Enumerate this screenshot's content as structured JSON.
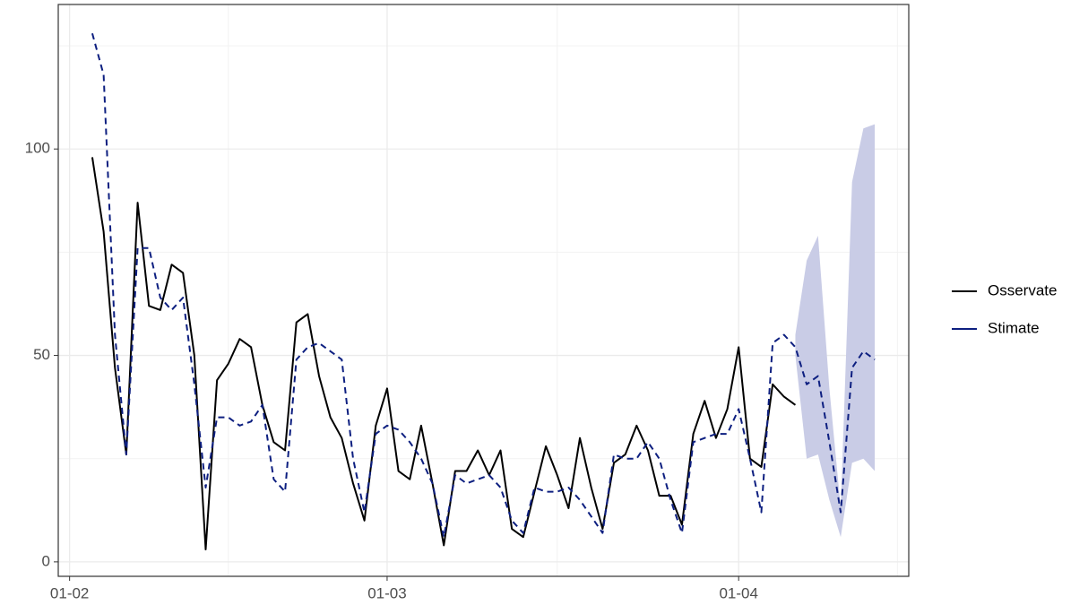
{
  "chart_data": {
    "type": "line",
    "x": [
      "03-02",
      "04-02",
      "05-02",
      "06-02",
      "07-02",
      "08-02",
      "09-02",
      "10-02",
      "11-02",
      "12-02",
      "13-02",
      "14-02",
      "15-02",
      "16-02",
      "17-02",
      "18-02",
      "19-02",
      "20-02",
      "21-02",
      "22-02",
      "23-02",
      "24-02",
      "25-02",
      "26-02",
      "27-02",
      "28-02",
      "01-03",
      "02-03",
      "03-03",
      "04-03",
      "05-03",
      "06-03",
      "07-03",
      "08-03",
      "09-03",
      "10-03",
      "11-03",
      "12-03",
      "13-03",
      "14-03",
      "15-03",
      "16-03",
      "17-03",
      "18-03",
      "19-03",
      "20-03",
      "21-03",
      "22-03",
      "23-03",
      "24-03",
      "25-03",
      "26-03",
      "27-03",
      "28-03",
      "29-03",
      "30-03",
      "31-03",
      "01-04",
      "02-04",
      "03-04",
      "04-04",
      "05-04",
      "06-04",
      "07-04",
      "08-04",
      "09-04",
      "10-04",
      "11-04",
      "12-04",
      "13-04"
    ],
    "series": [
      {
        "name": "Osservate",
        "color": "#000000",
        "values": [
          98,
          80,
          47,
          26,
          87,
          62,
          61,
          72,
          70,
          50,
          3,
          44,
          48,
          54,
          52,
          38,
          29,
          27,
          58,
          60,
          45,
          35,
          30,
          19,
          10,
          33,
          42,
          22,
          20,
          33,
          19,
          4,
          22,
          22,
          27,
          21,
          27,
          8,
          6,
          17,
          28,
          21,
          13,
          30,
          18,
          8,
          24,
          26,
          33,
          27,
          16,
          16,
          9,
          31,
          39,
          30,
          37,
          52,
          25,
          23,
          43,
          40,
          38,
          null,
          null,
          null,
          null,
          null,
          null,
          null
        ]
      },
      {
        "name": "Stimate",
        "color": "#0d1f80",
        "dashed": true,
        "band_color": "#c9cce6",
        "values": [
          128,
          118,
          55,
          26,
          76,
          76,
          64,
          61,
          64,
          43,
          18,
          35,
          35,
          33,
          34,
          38,
          20,
          17,
          49,
          52,
          53,
          51,
          49,
          25,
          12,
          31,
          33,
          32,
          29,
          25,
          19,
          6,
          21,
          19,
          20,
          21,
          18,
          10,
          7,
          18,
          17,
          17,
          18,
          15,
          11,
          7,
          26,
          25,
          25,
          29,
          25,
          15,
          7,
          29,
          30,
          31,
          31,
          37,
          25,
          12,
          53,
          55,
          52,
          43,
          45,
          29,
          12,
          47,
          51,
          49
        ],
        "lower": [
          null,
          null,
          null,
          null,
          null,
          null,
          null,
          null,
          null,
          null,
          null,
          null,
          null,
          null,
          null,
          null,
          null,
          null,
          null,
          null,
          null,
          null,
          null,
          null,
          null,
          null,
          null,
          null,
          null,
          null,
          null,
          null,
          null,
          null,
          null,
          null,
          null,
          null,
          null,
          null,
          null,
          null,
          null,
          null,
          null,
          null,
          null,
          null,
          null,
          null,
          null,
          null,
          null,
          null,
          null,
          null,
          null,
          null,
          null,
          null,
          null,
          null,
          50,
          25,
          26,
          15,
          6,
          24,
          25,
          22
        ],
        "upper": [
          null,
          null,
          null,
          null,
          null,
          null,
          null,
          null,
          null,
          null,
          null,
          null,
          null,
          null,
          null,
          null,
          null,
          null,
          null,
          null,
          null,
          null,
          null,
          null,
          null,
          null,
          null,
          null,
          null,
          null,
          null,
          null,
          null,
          null,
          null,
          null,
          null,
          null,
          null,
          null,
          null,
          null,
          null,
          null,
          null,
          null,
          null,
          null,
          null,
          null,
          null,
          null,
          null,
          null,
          null,
          null,
          null,
          null,
          null,
          null,
          null,
          null,
          55,
          73,
          79,
          42,
          13,
          92,
          105,
          106
        ]
      }
    ],
    "xlim": [
      "31-01",
      "16-04"
    ],
    "xticks": [
      "01-02",
      "01-03",
      "01-04"
    ],
    "xminorticks": [
      "15-02",
      "16-03",
      "15-04"
    ],
    "ylim": [
      -3.5,
      135
    ],
    "yticks": [
      0,
      50,
      100
    ],
    "yminorticks": [
      25,
      75,
      125
    ],
    "grid": true
  }
}
